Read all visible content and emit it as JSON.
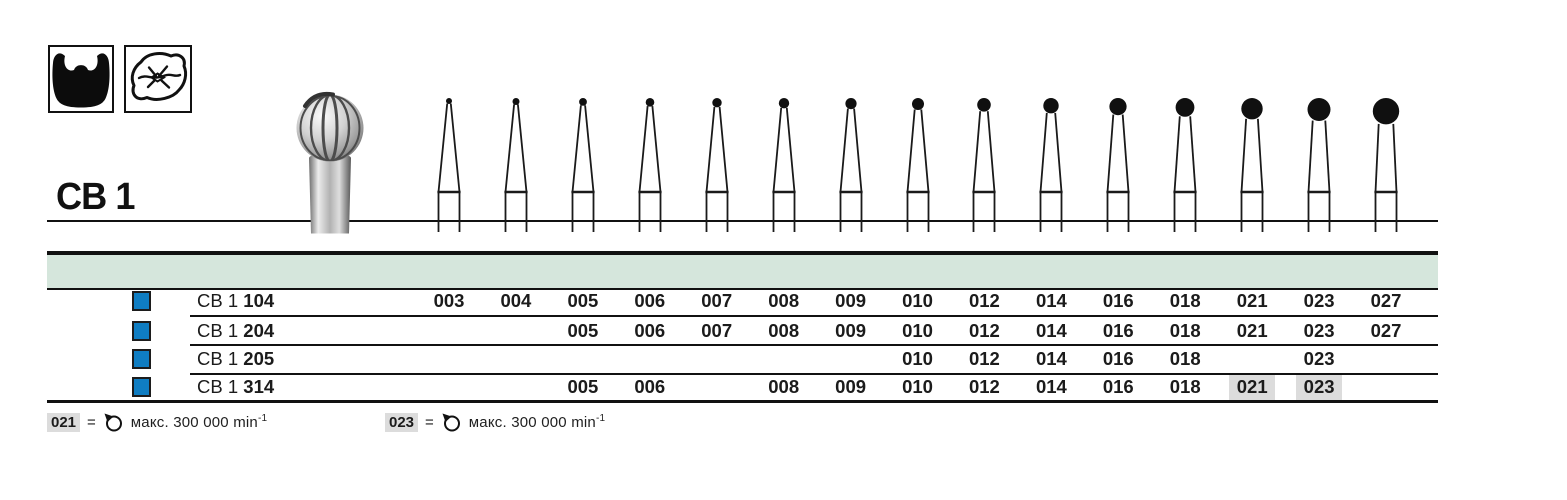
{
  "header": {
    "series_title": "CB 1",
    "icons": [
      {
        "name": "crown-cavity-icon"
      },
      {
        "name": "occlusal-surface-icon"
      }
    ]
  },
  "figures": {
    "description": "row of round carbide burs, head size increasing left to right",
    "sizes": [
      3,
      4,
      5,
      6,
      7,
      8,
      9,
      10,
      12,
      14,
      16,
      18,
      21,
      23,
      27
    ]
  },
  "table": {
    "band_color": "#d5e6dc",
    "marker_color": "#0f7dc2",
    "highlight_color": "#dcdcdc",
    "columns": [
      "003",
      "004",
      "005",
      "006",
      "007",
      "008",
      "009",
      "010",
      "012",
      "014",
      "016",
      "018",
      "021",
      "023",
      "027"
    ],
    "rows": [
      {
        "label_prefix": "CB 1",
        "label_code": "104",
        "cells": [
          "003",
          "004",
          "005",
          "006",
          "007",
          "008",
          "009",
          "010",
          "012",
          "014",
          "016",
          "018",
          "021",
          "023",
          "027"
        ],
        "highlights": []
      },
      {
        "label_prefix": "CB 1",
        "label_code": "204",
        "cells": [
          "",
          "",
          "005",
          "006",
          "007",
          "008",
          "009",
          "010",
          "012",
          "014",
          "016",
          "018",
          "021",
          "023",
          "027"
        ],
        "highlights": []
      },
      {
        "label_prefix": "CB 1",
        "label_code": "205",
        "cells": [
          "",
          "",
          "",
          "",
          "",
          "",
          "",
          "010",
          "012",
          "014",
          "016",
          "018",
          "",
          "023",
          ""
        ],
        "highlights": []
      },
      {
        "label_prefix": "CB 1",
        "label_code": "314",
        "cells": [
          "",
          "",
          "005",
          "006",
          "",
          "008",
          "009",
          "010",
          "012",
          "014",
          "016",
          "018",
          "021",
          "023",
          ""
        ],
        "highlights": [
          12,
          13
        ]
      }
    ]
  },
  "footnotes": [
    {
      "size": "021",
      "equals": "=",
      "text": "макс. 300 000 min",
      "sup": "-1"
    },
    {
      "size": "023",
      "equals": "=",
      "text": "макс. 300 000 min",
      "sup": "-1"
    }
  ]
}
